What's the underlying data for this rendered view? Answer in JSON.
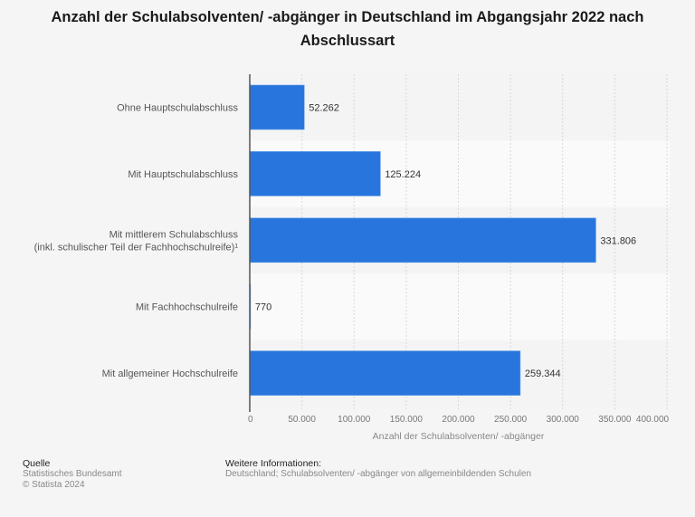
{
  "title": "Anzahl der Schulabsolventen/ -abgänger in Deutschland im Abgangsjahr 2022 nach Abschlussart",
  "colors": {
    "bar": "#2876dd",
    "band_dark": "#f4f4f4",
    "band_light": "#fafafa",
    "grid": "#d8d8d8",
    "axis": "#555555",
    "label": "#555555",
    "value_label": "#333333",
    "tick": "#777777"
  },
  "chart_data": {
    "type": "bar",
    "orientation": "horizontal",
    "title": "Anzahl der Schulabsolventen/ -abgänger in Deutschland im Abgangsjahr 2022 nach Abschlussart",
    "categories": [
      [
        "Ohne Hauptschulabschluss"
      ],
      [
        "Mit Hauptschulabschluss"
      ],
      [
        "Mit mittlerem Schulabschluss",
        "(inkl. schulischer Teil der Fachhochschulreife)¹"
      ],
      [
        "Mit Fachhochschulreife"
      ],
      [
        "Mit allgemeiner Hochschulreife"
      ]
    ],
    "values": [
      52262,
      125224,
      331806,
      770,
      259344
    ],
    "value_labels": [
      "52.262",
      "125.224",
      "331.806",
      "770",
      "259.344"
    ],
    "xlabel": "Anzahl der Schulabsolventen/ -abgänger",
    "ylabel": "",
    "xlim": [
      0,
      400000
    ],
    "xticks": [
      0,
      50000,
      100000,
      150000,
      200000,
      250000,
      300000,
      350000,
      400000
    ],
    "xtick_labels": [
      "0",
      "50.000",
      "100.000",
      "150.000",
      "200.000",
      "250.000",
      "300.000",
      "350.000",
      "400.000"
    ],
    "grid": true,
    "legend": "none"
  },
  "footer": {
    "source_heading": "Quelle",
    "source_name": "Statistisches Bundesamt",
    "copyright": "© Statista 2024",
    "info_heading": "Weitere Informationen:",
    "info_text": "Deutschland; Schulabsolventen/ -abgänger von allgemeinbildenden Schulen"
  }
}
